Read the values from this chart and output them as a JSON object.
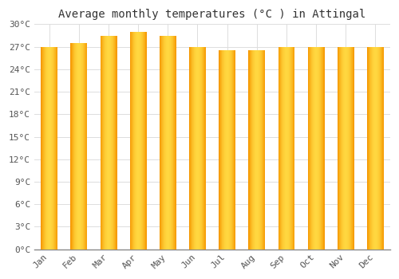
{
  "title": "Average monthly temperatures (°C ) in Attingal",
  "months": [
    "Jan",
    "Feb",
    "Mar",
    "Apr",
    "May",
    "Jun",
    "Jul",
    "Aug",
    "Sep",
    "Oct",
    "Nov",
    "Dec"
  ],
  "values": [
    27.0,
    27.5,
    28.5,
    29.0,
    28.5,
    27.0,
    26.5,
    26.5,
    27.0,
    27.0,
    27.0,
    27.0
  ],
  "ylim": [
    0,
    30
  ],
  "yticks": [
    0,
    3,
    6,
    9,
    12,
    15,
    18,
    21,
    24,
    27,
    30
  ],
  "bar_color_center": "#FFD740",
  "bar_color_edge": "#F59700",
  "background_color": "#FFFFFF",
  "grid_color": "#DDDDDD",
  "title_fontsize": 10,
  "tick_fontsize": 8,
  "font_family": "monospace",
  "bar_width": 0.55
}
